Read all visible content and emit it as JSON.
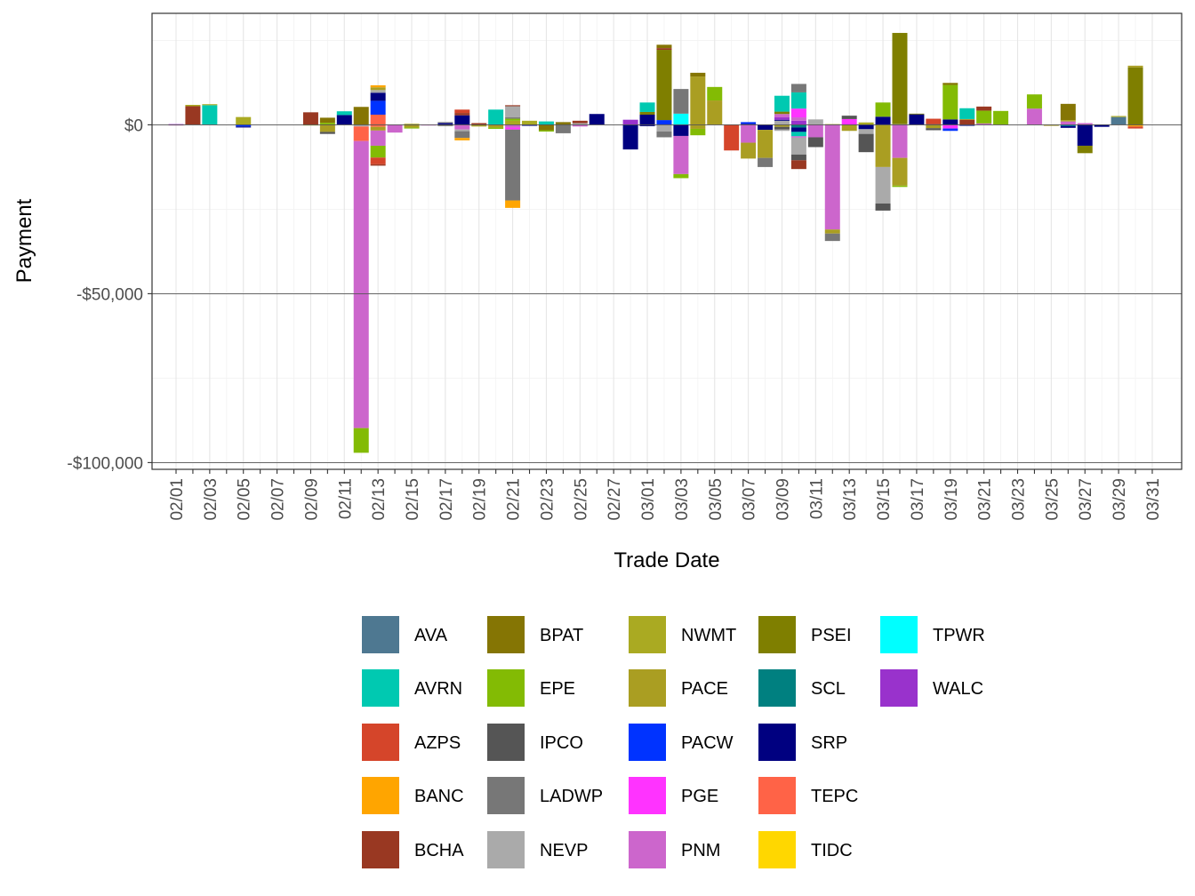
{
  "chart_data": {
    "type": "bar",
    "stacked": true,
    "title": "",
    "xlabel": "Trade Date",
    "ylabel": "Payment",
    "ylim": [
      -102000,
      33000
    ],
    "y_ticks": [
      0,
      -50000,
      -100000
    ],
    "y_tick_labels": [
      "$0",
      "-$50,000",
      "-$100,000"
    ],
    "grid": true,
    "legend_position": "bottom",
    "categories": [
      "02/01",
      "02/02",
      "02/03",
      "02/04",
      "02/05",
      "02/06",
      "02/07",
      "02/08",
      "02/09",
      "02/10",
      "02/11",
      "02/12",
      "02/13",
      "02/14",
      "02/15",
      "02/16",
      "02/17",
      "02/18",
      "02/19",
      "02/20",
      "02/21",
      "02/22",
      "02/23",
      "02/24",
      "02/25",
      "02/26",
      "02/27",
      "02/28",
      "03/01",
      "03/02",
      "03/03",
      "03/04",
      "03/05",
      "03/06",
      "03/07",
      "03/08",
      "03/09",
      "03/10",
      "03/11",
      "03/12",
      "03/13",
      "03/14",
      "03/15",
      "03/16",
      "03/17",
      "03/18",
      "03/19",
      "03/20",
      "03/21",
      "03/22",
      "03/23",
      "03/24",
      "03/25",
      "03/26",
      "03/27",
      "03/28",
      "03/29",
      "03/30",
      "03/31"
    ],
    "x_tick_labels": [
      "02/01",
      "02/03",
      "02/05",
      "02/07",
      "02/09",
      "02/11",
      "02/13",
      "02/15",
      "02/17",
      "02/19",
      "02/21",
      "02/23",
      "02/25",
      "02/27",
      "03/01",
      "03/03",
      "03/05",
      "03/07",
      "03/09",
      "03/11",
      "03/13",
      "03/15",
      "03/17",
      "03/19",
      "03/21",
      "03/23",
      "03/25",
      "03/27",
      "03/29",
      "03/31"
    ],
    "legend": [
      {
        "name": "AVA",
        "color": "#4E7891"
      },
      {
        "name": "AVRN",
        "color": "#00C9B1"
      },
      {
        "name": "AZPS",
        "color": "#D5452A"
      },
      {
        "name": "BANC",
        "color": "#FFA500"
      },
      {
        "name": "BCHA",
        "color": "#993822"
      },
      {
        "name": "BPAT",
        "color": "#857504"
      },
      {
        "name": "EPE",
        "color": "#83BB04"
      },
      {
        "name": "IPCO",
        "color": "#555555"
      },
      {
        "name": "LADWP",
        "color": "#777777"
      },
      {
        "name": "NEVP",
        "color": "#AAAAAA"
      },
      {
        "name": "NWMT",
        "color": "#AAAA22"
      },
      {
        "name": "PACE",
        "color": "#AA9E22"
      },
      {
        "name": "PACW",
        "color": "#0033FF"
      },
      {
        "name": "PGE",
        "color": "#FF33FF"
      },
      {
        "name": "PNM",
        "color": "#CC66CC"
      },
      {
        "name": "PSEI",
        "color": "#7F7F00"
      },
      {
        "name": "SCL",
        "color": "#008080"
      },
      {
        "name": "SRP",
        "color": "#000080"
      },
      {
        "name": "TEPC",
        "color": "#FF6347"
      },
      {
        "name": "TIDC",
        "color": "#FFD700"
      },
      {
        "name": "TPWR",
        "color": "#00FFFF"
      },
      {
        "name": "WALC",
        "color": "#9932CC"
      }
    ],
    "bars": [
      {
        "date": "02/01",
        "segments": [
          [
            "PNM",
            -200
          ],
          [
            "WALC",
            200
          ]
        ]
      },
      {
        "date": "02/02",
        "segments": [
          [
            "BCHA",
            5500
          ],
          [
            "NWMT",
            400
          ]
        ]
      },
      {
        "date": "02/03",
        "segments": [
          [
            "AVRN",
            5800
          ],
          [
            "NWMT",
            300
          ]
        ]
      },
      {
        "date": "02/04",
        "segments": []
      },
      {
        "date": "02/05",
        "segments": [
          [
            "NWMT",
            2300
          ],
          [
            "PACW",
            -500
          ],
          [
            "SRP",
            -300
          ]
        ]
      },
      {
        "date": "02/06",
        "segments": []
      },
      {
        "date": "02/07",
        "segments": []
      },
      {
        "date": "02/08",
        "segments": []
      },
      {
        "date": "02/09",
        "segments": [
          [
            "BCHA",
            3700
          ],
          [
            "NWMT",
            -200
          ]
        ]
      },
      {
        "date": "02/10",
        "segments": [
          [
            "EPE",
            600
          ],
          [
            "BPAT",
            1500
          ],
          [
            "PACE",
            -2100
          ],
          [
            "IPCO",
            -600
          ]
        ]
      },
      {
        "date": "02/11",
        "segments": [
          [
            "SRP",
            2900
          ],
          [
            "AVRN",
            1100
          ]
        ]
      },
      {
        "date": "02/12",
        "segments": [
          [
            "BPAT",
            5300
          ],
          [
            "NEVP",
            -500
          ],
          [
            "TEPC",
            -4300
          ],
          [
            "PNM",
            -85000
          ],
          [
            "EPE",
            -7300
          ]
        ]
      },
      {
        "date": "02/13",
        "segments": [
          [
            "TEPC",
            3000
          ],
          [
            "PACW",
            4100
          ],
          [
            "SRP",
            2400
          ],
          [
            "NEVP",
            800
          ],
          [
            "PACE",
            800
          ],
          [
            "BANC",
            600
          ],
          [
            "TEPC",
            -600
          ],
          [
            "PACE",
            -1100
          ],
          [
            "PNM",
            -4500
          ],
          [
            "EPE",
            -3500
          ],
          [
            "AZPS",
            -2000
          ],
          [
            "BCHA",
            -400
          ]
        ]
      },
      {
        "date": "02/14",
        "segments": [
          [
            "PNM",
            -2300
          ]
        ]
      },
      {
        "date": "02/15",
        "segments": [
          [
            "NWMT",
            300
          ],
          [
            "PACE",
            -800
          ],
          [
            "EPE",
            -300
          ]
        ]
      },
      {
        "date": "02/16",
        "segments": [
          [
            "PNM",
            -200
          ]
        ]
      },
      {
        "date": "02/17",
        "segments": [
          [
            "SRP",
            500
          ],
          [
            "NEVP",
            400
          ],
          [
            "LADWP",
            -400
          ]
        ]
      },
      {
        "date": "02/18",
        "segments": [
          [
            "SRP",
            2800
          ],
          [
            "BCHA",
            700
          ],
          [
            "AZPS",
            1000
          ],
          [
            "PNM",
            -1400
          ],
          [
            "NEVP",
            -500
          ],
          [
            "LADWP",
            -2000
          ],
          [
            "BANC",
            -700
          ]
        ]
      },
      {
        "date": "02/19",
        "segments": [
          [
            "BCHA",
            500
          ],
          [
            "PACE",
            -500
          ]
        ]
      },
      {
        "date": "02/20",
        "segments": [
          [
            "AVRN",
            4500
          ],
          [
            "PACE",
            -800
          ],
          [
            "EPE",
            -400
          ]
        ]
      },
      {
        "date": "02/21",
        "segments": [
          [
            "NWMT",
            1200
          ],
          [
            "EPE",
            600
          ],
          [
            "LADWP",
            400
          ],
          [
            "NEVP",
            3300
          ],
          [
            "BCHA",
            300
          ],
          [
            "PNM",
            -800
          ],
          [
            "PGE",
            -600
          ],
          [
            "LADWP",
            -21000
          ],
          [
            "BANC",
            -2200
          ]
        ]
      },
      {
        "date": "02/22",
        "segments": [
          [
            "NWMT",
            1200
          ],
          [
            "SRP",
            -300
          ]
        ]
      },
      {
        "date": "02/23",
        "segments": [
          [
            "AVRN",
            1000
          ],
          [
            "BPAT",
            -1600
          ],
          [
            "EPE",
            -400
          ]
        ]
      },
      {
        "date": "02/24",
        "segments": [
          [
            "BPAT",
            800
          ],
          [
            "LADWP",
            -2500
          ]
        ]
      },
      {
        "date": "02/25",
        "segments": [
          [
            "NEVP",
            500
          ],
          [
            "BCHA",
            700
          ],
          [
            "PNM",
            -500
          ]
        ]
      },
      {
        "date": "02/26",
        "segments": [
          [
            "SRP",
            3200
          ]
        ]
      },
      {
        "date": "02/27",
        "segments": []
      },
      {
        "date": "02/28",
        "segments": [
          [
            "WALC",
            1500
          ],
          [
            "SRP",
            -7300
          ]
        ]
      },
      {
        "date": "03/01",
        "segments": [
          [
            "SRP",
            3000
          ],
          [
            "PSEI",
            800
          ],
          [
            "AVRN",
            2800
          ],
          [
            "SRP",
            -400
          ]
        ]
      },
      {
        "date": "03/02",
        "segments": [
          [
            "PACW",
            1400
          ],
          [
            "PSEI",
            20800
          ],
          [
            "BCHA",
            500
          ],
          [
            "BPAT",
            1000
          ],
          [
            "NEVP",
            -2000
          ],
          [
            "LADWP",
            -1700
          ]
        ]
      },
      {
        "date": "03/03",
        "segments": [
          [
            "TPWR",
            3300
          ],
          [
            "LADWP",
            7300
          ],
          [
            "SRP",
            -3300
          ],
          [
            "PNM",
            -11300
          ],
          [
            "EPE",
            -1200
          ]
        ]
      },
      {
        "date": "03/04",
        "segments": [
          [
            "PACE",
            14300
          ],
          [
            "BPAT",
            1100
          ],
          [
            "PACE",
            -1200
          ],
          [
            "EPE",
            -1900
          ]
        ]
      },
      {
        "date": "03/05",
        "segments": [
          [
            "PACE",
            7200
          ],
          [
            "EPE",
            4000
          ]
        ]
      },
      {
        "date": "03/06",
        "segments": [
          [
            "AZPS",
            -7600
          ]
        ]
      },
      {
        "date": "03/07",
        "segments": [
          [
            "SRP",
            300
          ],
          [
            "PACW",
            500
          ],
          [
            "PNM",
            -5300
          ],
          [
            "PACE",
            -4700
          ]
        ]
      },
      {
        "date": "03/08",
        "segments": [
          [
            "SRP",
            -1500
          ],
          [
            "PACE",
            -8300
          ],
          [
            "LADWP",
            -2700
          ]
        ]
      },
      {
        "date": "03/09",
        "segments": [
          [
            "NEVP",
            1200
          ],
          [
            "SRP",
            300
          ],
          [
            "WALC",
            700
          ],
          [
            "PNM",
            1000
          ],
          [
            "PSEI",
            700
          ],
          [
            "AVRN",
            4700
          ],
          [
            "PACE",
            -600
          ],
          [
            "IPCO",
            -800
          ],
          [
            "NEVP",
            -400
          ]
        ]
      },
      {
        "date": "03/10",
        "segments": [
          [
            "WALC",
            1200
          ],
          [
            "PNM",
            1000
          ],
          [
            "PGE",
            2600
          ],
          [
            "AVRN",
            4800
          ],
          [
            "LADWP",
            2500
          ],
          [
            "SCL",
            -800
          ],
          [
            "SRP",
            -1300
          ],
          [
            "AVRN",
            -1300
          ],
          [
            "PNM",
            -400
          ],
          [
            "NEVP",
            -5000
          ],
          [
            "IPCO",
            -1700
          ],
          [
            "BCHA",
            -2600
          ]
        ]
      },
      {
        "date": "03/11",
        "segments": [
          [
            "NEVP",
            1600
          ],
          [
            "PNM",
            -3700
          ],
          [
            "IPCO",
            -2900
          ]
        ]
      },
      {
        "date": "03/12",
        "segments": [
          [
            "PACE",
            200
          ],
          [
            "PNM",
            -31000
          ],
          [
            "PACE",
            -1200
          ],
          [
            "LADWP",
            -2200
          ]
        ]
      },
      {
        "date": "03/13",
        "segments": [
          [
            "PGE",
            1700
          ],
          [
            "IPCO",
            1000
          ],
          [
            "PACE",
            -1800
          ]
        ]
      },
      {
        "date": "03/14",
        "segments": [
          [
            "NWMT",
            700
          ],
          [
            "SRP",
            -1300
          ],
          [
            "NEVP",
            -1400
          ],
          [
            "IPCO",
            -5400
          ]
        ]
      },
      {
        "date": "03/15",
        "segments": [
          [
            "SRP",
            2400
          ],
          [
            "EPE",
            4200
          ],
          [
            "PACE",
            -12500
          ],
          [
            "NEVP",
            -10800
          ],
          [
            "IPCO",
            -2100
          ]
        ]
      },
      {
        "date": "03/16",
        "segments": [
          [
            "NEVP",
            200
          ],
          [
            "PSEI",
            27000
          ],
          [
            "PNM",
            -9800
          ],
          [
            "PACE",
            -8200
          ],
          [
            "EPE",
            -400
          ]
        ]
      },
      {
        "date": "03/17",
        "segments": [
          [
            "SRP",
            3100
          ],
          [
            "PSEI",
            200
          ]
        ]
      },
      {
        "date": "03/18",
        "segments": [
          [
            "BCHA",
            300
          ],
          [
            "AZPS",
            1500
          ],
          [
            "PACE",
            -1000
          ],
          [
            "IPCO",
            -600
          ]
        ]
      },
      {
        "date": "03/19",
        "segments": [
          [
            "SRP",
            1600
          ],
          [
            "EPE",
            10200
          ],
          [
            "BPAT",
            600
          ],
          [
            "PGE",
            -1100
          ],
          [
            "PACW",
            -700
          ]
        ]
      },
      {
        "date": "03/20",
        "segments": [
          [
            "BCHA",
            1500
          ],
          [
            "PACE",
            200
          ],
          [
            "AVRN",
            3200
          ],
          [
            "SRP",
            -300
          ]
        ]
      },
      {
        "date": "03/21",
        "segments": [
          [
            "PNM",
            400
          ],
          [
            "EPE",
            3800
          ],
          [
            "BCHA",
            1200
          ]
        ]
      },
      {
        "date": "03/22",
        "segments": [
          [
            "EPE",
            4100
          ]
        ]
      },
      {
        "date": "03/23",
        "segments": []
      },
      {
        "date": "03/24",
        "segments": [
          [
            "PNM",
            4800
          ],
          [
            "EPE",
            4200
          ]
        ]
      },
      {
        "date": "03/25",
        "segments": [
          [
            "PACE",
            -300
          ]
        ]
      },
      {
        "date": "03/26",
        "segments": [
          [
            "PNM",
            1000
          ],
          [
            "NWMT",
            400
          ],
          [
            "BPAT",
            4800
          ],
          [
            "AVRN",
            -300
          ],
          [
            "SRP",
            -600
          ]
        ]
      },
      {
        "date": "03/27",
        "segments": [
          [
            "PNM",
            500
          ],
          [
            "SRP",
            -6200
          ],
          [
            "PSEI",
            -2200
          ]
        ]
      },
      {
        "date": "03/28",
        "segments": [
          [
            "SRP",
            -600
          ]
        ]
      },
      {
        "date": "03/29",
        "segments": [
          [
            "AVA",
            2300
          ],
          [
            "NWMT",
            300
          ]
        ]
      },
      {
        "date": "03/30",
        "segments": [
          [
            "PSEI",
            17000
          ],
          [
            "PACE",
            500
          ],
          [
            "BANC",
            -500
          ],
          [
            "AZPS",
            -600
          ]
        ]
      },
      {
        "date": "03/31",
        "segments": []
      }
    ]
  }
}
